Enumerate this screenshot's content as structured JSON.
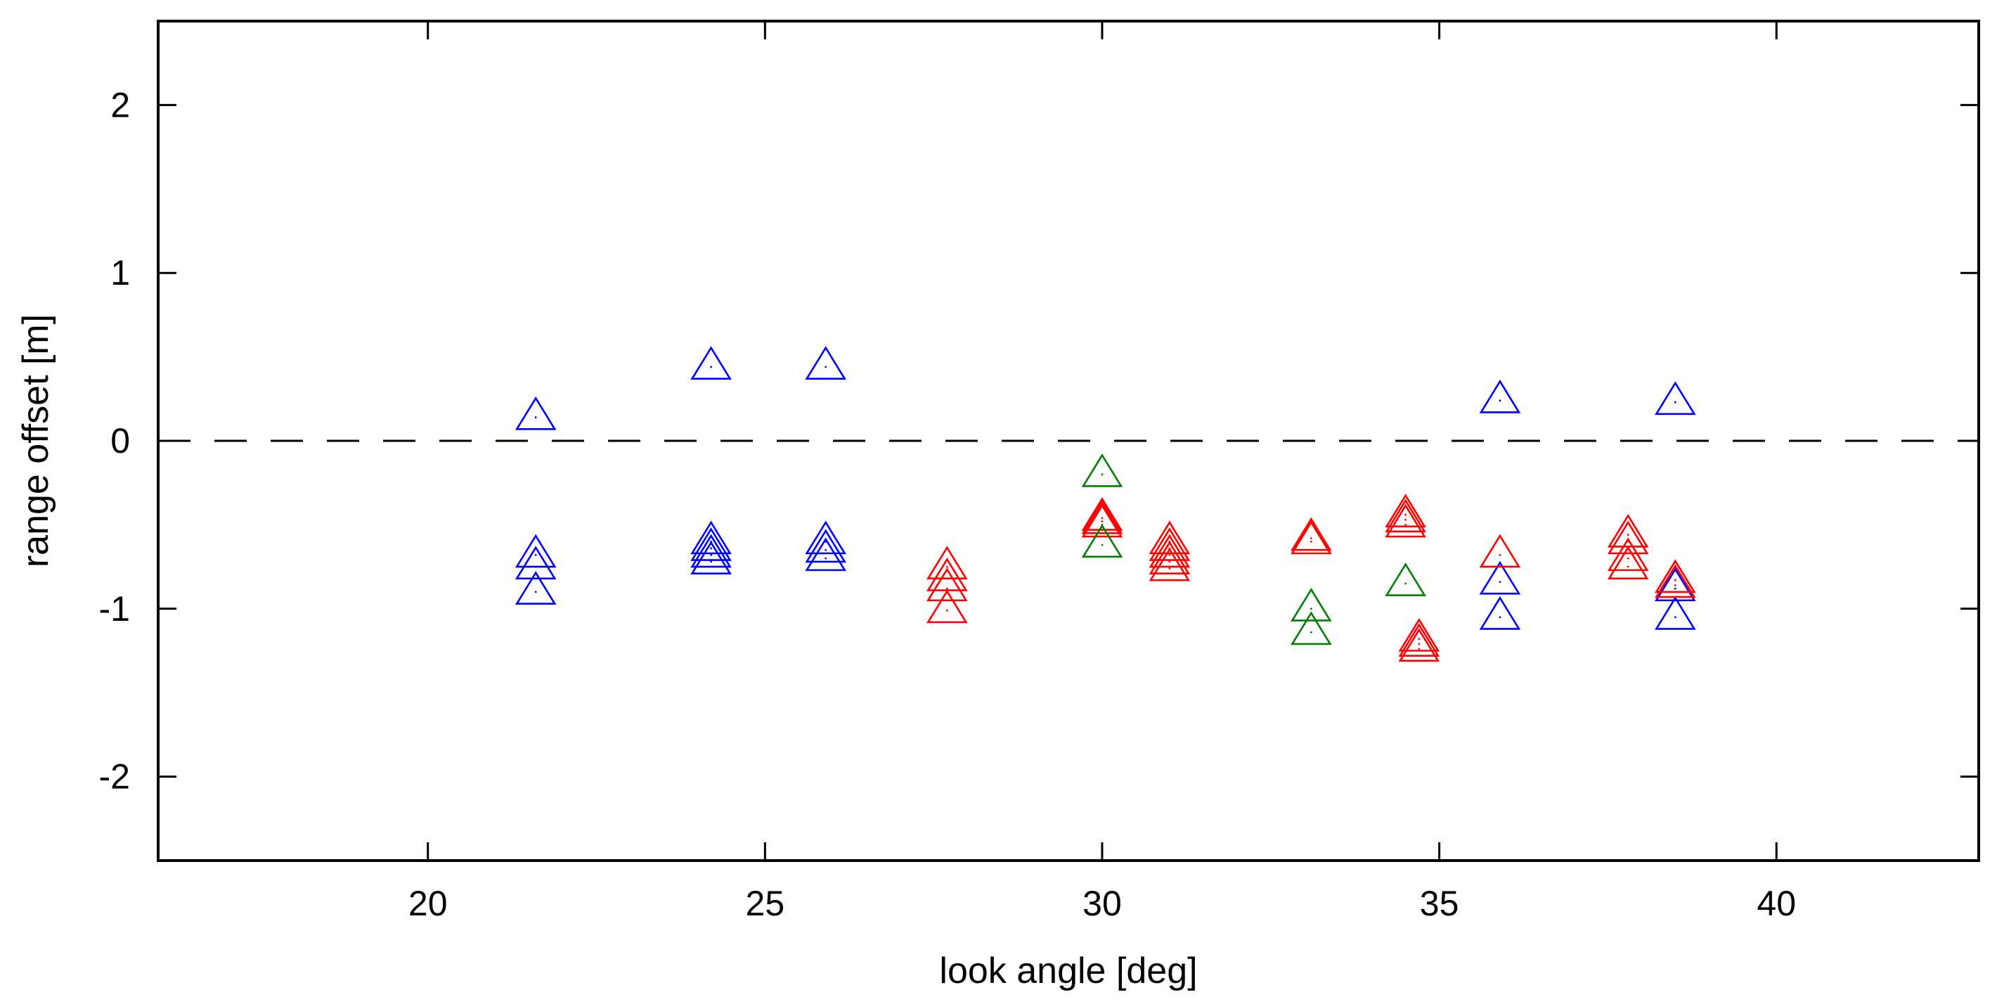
{
  "chart_data": {
    "type": "scatter",
    "title": "",
    "xlabel": "look angle [deg]",
    "ylabel": "range offset [m]",
    "xlim": [
      16,
      43
    ],
    "ylim": [
      -2.5,
      2.5
    ],
    "xticks": [
      20,
      25,
      30,
      35,
      40
    ],
    "yticks": [
      -2,
      -1,
      0,
      1,
      2
    ],
    "xtick_labels": [
      "20",
      "25",
      "30",
      "35",
      "40"
    ],
    "ytick_labels": [
      "-2",
      "-1",
      "0",
      "1",
      "2"
    ],
    "grid": false,
    "legend": "none",
    "marker": "open-triangle",
    "reference_line": {
      "y": 0,
      "style": "dashed",
      "color": "#000000"
    },
    "series": [
      {
        "name": "blue",
        "color": "#0000ff",
        "points": [
          [
            21.6,
            0.14
          ],
          [
            21.6,
            -0.68
          ],
          [
            21.6,
            -0.75
          ],
          [
            21.6,
            -0.9
          ],
          [
            24.2,
            0.44
          ],
          [
            24.2,
            -0.6
          ],
          [
            24.2,
            -0.64
          ],
          [
            24.2,
            -0.68
          ],
          [
            24.2,
            -0.72
          ],
          [
            25.9,
            0.44
          ],
          [
            25.9,
            -0.6
          ],
          [
            25.9,
            -0.65
          ],
          [
            25.9,
            -0.7
          ],
          [
            35.9,
            0.24
          ],
          [
            35.9,
            -0.84
          ],
          [
            35.9,
            -1.05
          ],
          [
            38.5,
            0.23
          ],
          [
            38.5,
            -0.88
          ],
          [
            38.5,
            -1.05
          ]
        ]
      },
      {
        "name": "red",
        "color": "#ff0000",
        "points": [
          [
            27.7,
            -0.75
          ],
          [
            27.7,
            -0.82
          ],
          [
            27.7,
            -0.88
          ],
          [
            27.7,
            -1.01
          ],
          [
            30.0,
            -0.46
          ],
          [
            30.0,
            -0.48
          ],
          [
            30.0,
            -0.5
          ],
          [
            31.0,
            -0.6
          ],
          [
            31.0,
            -0.64
          ],
          [
            31.0,
            -0.68
          ],
          [
            31.0,
            -0.72
          ],
          [
            31.0,
            -0.76
          ],
          [
            33.1,
            -0.58
          ],
          [
            33.1,
            -0.6
          ],
          [
            34.5,
            -0.44
          ],
          [
            34.5,
            -0.47
          ],
          [
            34.5,
            -0.5
          ],
          [
            34.7,
            -1.18
          ],
          [
            34.7,
            -1.21
          ],
          [
            34.7,
            -1.24
          ],
          [
            35.9,
            -0.68
          ],
          [
            37.8,
            -0.56
          ],
          [
            37.8,
            -0.6
          ],
          [
            37.8,
            -0.7
          ],
          [
            37.8,
            -0.75
          ],
          [
            38.5,
            -0.83
          ],
          [
            38.5,
            -0.86
          ]
        ]
      },
      {
        "name": "green",
        "color": "#008000",
        "points": [
          [
            30.0,
            -0.2
          ],
          [
            30.0,
            -0.62
          ],
          [
            33.1,
            -1.0
          ],
          [
            33.1,
            -1.14
          ],
          [
            34.5,
            -0.85
          ]
        ]
      }
    ]
  }
}
